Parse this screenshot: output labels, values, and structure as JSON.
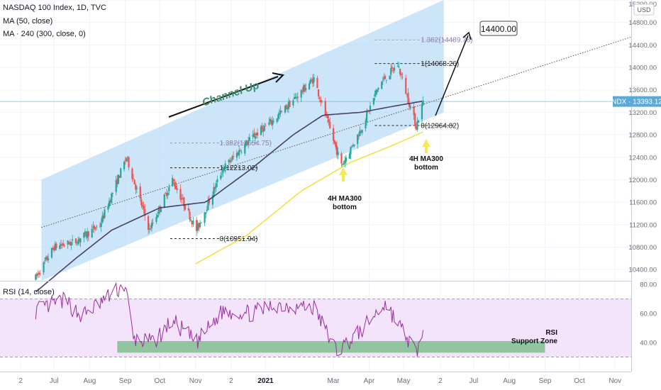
{
  "header": {
    "symbol_line": "NASDAQ 100 Index, 1D, TVC",
    "ma50_label": "MA (50, close)",
    "ma240_label": "MA · 240 (300, close, 0)",
    "currency": "USD"
  },
  "price_badge": {
    "text": "NDX · 13393.12",
    "value": 13393.12,
    "color": "#5aa9d6"
  },
  "rsi_header": "RSI (14, close)",
  "chart_data": {
    "type": "candlestick",
    "price_axis": {
      "ticks": [
        "15200.00",
        "14800.00",
        "14400.00",
        "14000.00",
        "13600.00",
        "13200.00",
        "12800.00",
        "12400.00",
        "12000.00",
        "11600.00",
        "11200.00",
        "10800.00",
        "10400.00"
      ],
      "range": [
        10200,
        15200
      ]
    },
    "rsi_axis": {
      "ticks": [
        "80.00",
        "60.00",
        "40.00"
      ],
      "range": [
        20,
        82
      ],
      "band": [
        30,
        70
      ]
    },
    "time_axis": {
      "ticks": [
        {
          "label": "2",
          "bold": false
        },
        {
          "label": "Jul",
          "bold": false
        },
        {
          "label": "Aug",
          "bold": false
        },
        {
          "label": "Sep",
          "bold": false
        },
        {
          "label": "Oct",
          "bold": false
        },
        {
          "label": "Nov",
          "bold": false
        },
        {
          "label": "2",
          "bold": false
        },
        {
          "label": "2021",
          "bold": true
        },
        {
          "label": "Mar",
          "bold": false
        },
        {
          "label": "Apr",
          "bold": false
        },
        {
          "label": "May",
          "bold": false
        },
        {
          "label": "2",
          "bold": false
        },
        {
          "label": "Jul",
          "bold": false
        },
        {
          "label": "Aug",
          "bold": false
        },
        {
          "label": "Sep",
          "bold": false
        },
        {
          "label": "Oct",
          "bold": false
        },
        {
          "label": "Nov",
          "bold": false
        }
      ]
    },
    "price_anchors": [
      [
        "2020-06-15",
        10250
      ],
      [
        "2020-07-01",
        10800
      ],
      [
        "2020-07-20",
        10900
      ],
      [
        "2020-08-10",
        11200
      ],
      [
        "2020-09-02",
        12400
      ],
      [
        "2020-09-22",
        11100
      ],
      [
        "2020-10-12",
        12000
      ],
      [
        "2020-11-02",
        11100
      ],
      [
        "2020-11-25",
        12200
      ],
      [
        "2020-12-20",
        12750
      ],
      [
        "2021-01-10",
        13100
      ],
      [
        "2021-02-12",
        13800
      ],
      [
        "2021-03-08",
        12250
      ],
      [
        "2021-03-25",
        12900
      ],
      [
        "2021-04-10",
        13700
      ],
      [
        "2021-04-26",
        14050
      ],
      [
        "2021-05-12",
        12950
      ],
      [
        "2021-05-18",
        13393
      ]
    ],
    "ma50_anchors": [
      [
        "2020-06-15",
        10000
      ],
      [
        "2020-07-20",
        10600
      ],
      [
        "2020-08-20",
        11100
      ],
      [
        "2020-10-01",
        11500
      ],
      [
        "2020-11-10",
        11600
      ],
      [
        "2020-12-20",
        12200
      ],
      [
        "2021-01-25",
        12800
      ],
      [
        "2021-02-20",
        13150
      ],
      [
        "2021-03-25",
        13200
      ],
      [
        "2021-04-20",
        13300
      ],
      [
        "2021-05-18",
        13400
      ]
    ],
    "ma300_anchors": [
      [
        "2020-11-01",
        10500
      ],
      [
        "2020-12-15",
        11000
      ],
      [
        "2021-02-01",
        11800
      ],
      [
        "2021-03-15",
        12300
      ],
      [
        "2021-04-20",
        12600
      ],
      [
        "2021-05-18",
        12850
      ]
    ],
    "rsi_anchors": [
      [
        "2020-06-15",
        62
      ],
      [
        "2020-07-10",
        69
      ],
      [
        "2020-07-25",
        58
      ],
      [
        "2020-08-15",
        70
      ],
      [
        "2020-09-01",
        80
      ],
      [
        "2020-09-08",
        42
      ],
      [
        "2020-09-25",
        40
      ],
      [
        "2020-10-12",
        55
      ],
      [
        "2020-11-02",
        40
      ],
      [
        "2020-11-25",
        62
      ],
      [
        "2020-12-20",
        60
      ],
      [
        "2021-01-10",
        66
      ],
      [
        "2021-02-12",
        64
      ],
      [
        "2021-03-04",
        34
      ],
      [
        "2021-03-25",
        48
      ],
      [
        "2021-04-15",
        67
      ],
      [
        "2021-05-12",
        33
      ],
      [
        "2021-05-18",
        46
      ]
    ],
    "channel": {
      "lower": [
        [
          "2020-06-20",
          10200
        ],
        [
          "2021-06-05",
          13200
        ]
      ],
      "upper": [
        [
          "2020-06-20",
          12000
        ],
        [
          "2021-06-05",
          15200
        ]
      ]
    },
    "fib_levels": [
      {
        "text": "1.382(12654.75)",
        "value": 12654.75,
        "from": "2020-10-10",
        "to": "2020-12-25",
        "muted": true
      },
      {
        "text": "1(12213.02)",
        "value": 12213.02,
        "from": "2020-10-10",
        "to": "2020-12-25",
        "muted": false
      },
      {
        "text": "0(10951.94)",
        "value": 10951.94,
        "from": "2020-10-10",
        "to": "2020-12-25",
        "muted": false
      },
      {
        "text": "1.382(14489.78)",
        "value": 14489.78,
        "from": "2021-04-06",
        "to": "2021-06-15",
        "muted": true
      },
      {
        "text": "1(14068.26)",
        "value": 14068.26,
        "from": "2021-04-06",
        "to": "2021-06-15",
        "muted": false
      },
      {
        "text": "0(12964.82)",
        "value": 12964.82,
        "from": "2021-04-06",
        "to": "2021-06-15",
        "muted": false
      }
    ],
    "annotations": {
      "channel_label": "Channel Up",
      "target_label": "14400.00",
      "bottom_label_left": [
        "4H MA300",
        "bottom"
      ],
      "bottom_label_right": [
        "4H MA300",
        "bottom"
      ],
      "rsi_zone_label": [
        "RSI",
        "Support Zone"
      ]
    },
    "rsi_support_zone": [
      33,
      41
    ],
    "colors": {
      "up": "#26a69a",
      "down": "#ef5350",
      "ma50": "#4a3f6b",
      "ma300": "#f5e04a",
      "channel": "#bcdcf7",
      "rsi_line": "#9b2ea0",
      "rsi_band": "#f3e3fb",
      "zone": "#7fbf8e",
      "arrow": "#f3e95a"
    }
  }
}
